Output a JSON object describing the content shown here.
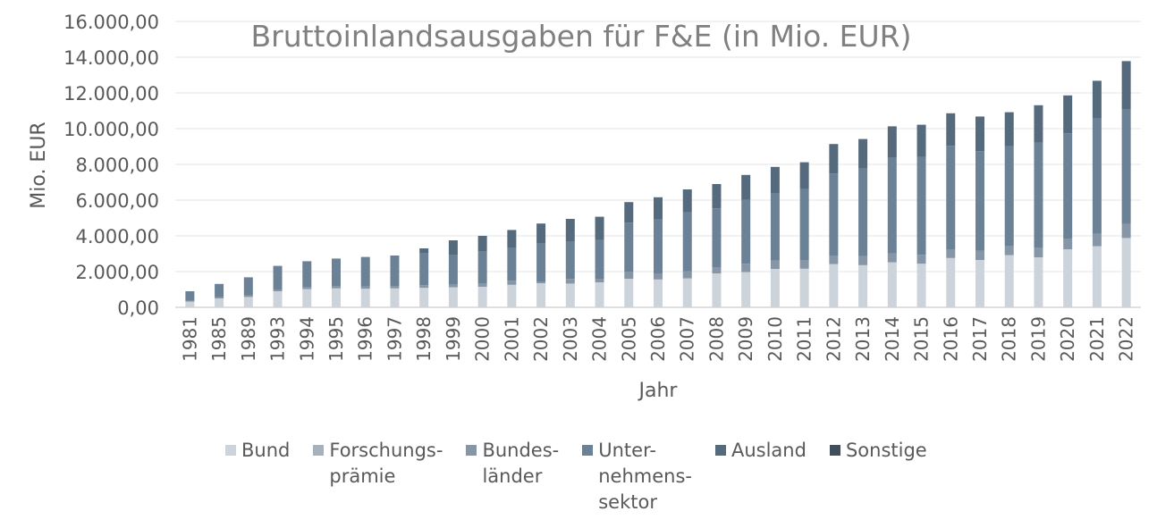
{
  "chart_data": {
    "type": "bar",
    "stacked": true,
    "title": "Bruttoinlandsausgaben für F&E (in Mio. EUR)",
    "xlabel": "Jahr",
    "ylabel": "Mio. EUR",
    "ylim": [
      0,
      16000
    ],
    "yticks": [
      "0,00",
      "2.000,00",
      "4.000,00",
      "6.000,00",
      "8.000,00",
      "10.000,00",
      "12.000,00",
      "14.000,00",
      "16.000,00"
    ],
    "grid": true,
    "legend_position": "bottom",
    "categories": [
      "1981",
      "1985",
      "1989",
      "1993",
      "1994",
      "1995",
      "1996",
      "1997",
      "1998",
      "1999",
      "2000",
      "2001",
      "2002",
      "2003",
      "2004",
      "2005",
      "2006",
      "2007",
      "2008",
      "2009",
      "2010",
      "2011",
      "2012",
      "2013",
      "2014",
      "2015",
      "2016",
      "2017",
      "2018",
      "2019",
      "2020",
      "2021",
      "2022"
    ],
    "series": [
      {
        "name": "Bund",
        "legend_label": "Bund",
        "color": "#ccd3da",
        "values": [
          320,
          500,
          580,
          900,
          1020,
          1060,
          1040,
          1060,
          1090,
          1120,
          1150,
          1260,
          1350,
          1330,
          1400,
          1600,
          1560,
          1620,
          1900,
          1970,
          2150,
          2160,
          2420,
          2360,
          2520,
          2440,
          2760,
          2650,
          2920,
          2800,
          3250,
          3420,
          3880
        ]
      },
      {
        "name": "Forschungsprämie",
        "legend_label": "Forschungs-\nprämie",
        "color": "#a7b1bc",
        "values": [
          0,
          0,
          0,
          0,
          0,
          0,
          0,
          0,
          0,
          0,
          0,
          0,
          0,
          0,
          0,
          0,
          0,
          0,
          0,
          0,
          0,
          0,
          0,
          0,
          0,
          0,
          0,
          0,
          0,
          0,
          0,
          0,
          0
        ]
      },
      {
        "name": "Bundesländer",
        "legend_label": "Bundes-\nländer",
        "color": "#8696a6",
        "values": [
          40,
          60,
          80,
          100,
          110,
          120,
          130,
          140,
          150,
          160,
          200,
          230,
          100,
          260,
          200,
          400,
          340,
          400,
          350,
          470,
          470,
          470,
          480,
          500,
          500,
          500,
          490,
          520,
          530,
          550,
          600,
          700,
          780
        ]
      },
      {
        "name": "Unternehmenssektor",
        "legend_label": "Unter-\nnehmens-\nsektor",
        "color": "#6b8196",
        "values": [
          540,
          750,
          1020,
          1320,
          1450,
          1550,
          1650,
          1700,
          1810,
          1670,
          1800,
          1860,
          2130,
          2110,
          2170,
          2740,
          3010,
          3300,
          3290,
          3570,
          3780,
          3990,
          4590,
          4900,
          5380,
          5480,
          5790,
          5570,
          5570,
          5870,
          5890,
          6440,
          6420
        ]
      },
      {
        "name": "Ausland",
        "legend_label": "Ausland",
        "color": "#566a7d",
        "values": [
          0,
          0,
          0,
          0,
          0,
          0,
          0,
          0,
          250,
          800,
          850,
          980,
          1110,
          1250,
          1300,
          1150,
          1250,
          1280,
          1360,
          1400,
          1460,
          1500,
          1650,
          1660,
          1730,
          1800,
          1820,
          1940,
          1900,
          2090,
          2120,
          2120,
          2700
        ]
      },
      {
        "name": "Sonstige",
        "legend_label": "Sonstige",
        "color": "#414f5d",
        "values": [
          0,
          0,
          0,
          0,
          0,
          0,
          0,
          0,
          0,
          0,
          0,
          0,
          0,
          0,
          0,
          0,
          0,
          0,
          0,
          0,
          0,
          0,
          0,
          0,
          0,
          0,
          0,
          0,
          0,
          0,
          0,
          0,
          0
        ]
      }
    ]
  }
}
